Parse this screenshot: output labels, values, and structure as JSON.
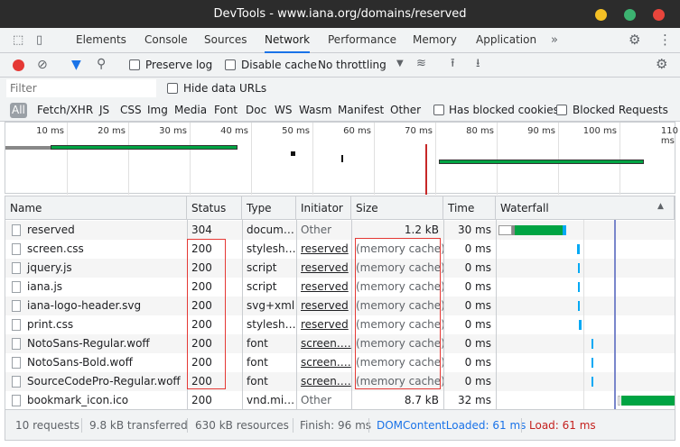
{
  "window": {
    "title": "DevTools - www.iana.org/domains/reserved"
  },
  "tabs": [
    {
      "label": "Elements"
    },
    {
      "label": "Console"
    },
    {
      "label": "Sources"
    },
    {
      "label": "Network",
      "active": true
    },
    {
      "label": "Performance"
    },
    {
      "label": "Memory"
    },
    {
      "label": "Application"
    }
  ],
  "toolbar": {
    "preserve_log": "Preserve log",
    "disable_cache": "Disable cache",
    "throttling": "No throttling"
  },
  "filter": {
    "placeholder": "Filter",
    "hide_data_urls": "Hide data URLs"
  },
  "type_filters": [
    "All",
    "Fetch/XHR",
    "JS",
    "CSS",
    "Img",
    "Media",
    "Font",
    "Doc",
    "WS",
    "Wasm",
    "Manifest",
    "Other"
  ],
  "blocked": {
    "cookies": "Has blocked cookies",
    "requests": "Blocked Requests"
  },
  "overview": {
    "ticks": [
      "10 ms",
      "20 ms",
      "30 ms",
      "40 ms",
      "50 ms",
      "60 ms",
      "70 ms",
      "80 ms",
      "90 ms",
      "100 ms",
      "110 ms"
    ]
  },
  "columns": [
    "Name",
    "Status",
    "Type",
    "Initiator",
    "Size",
    "Time",
    "Waterfall"
  ],
  "rows": [
    {
      "name": "reserved",
      "status": "304",
      "type": "docum…",
      "initiator": "Other",
      "size": "1.2 kB",
      "time": "30 ms"
    },
    {
      "name": "screen.css",
      "status": "200",
      "type": "stylesh…",
      "initiator": "reserved",
      "size": "(memory cache)",
      "time": "0 ms"
    },
    {
      "name": "jquery.js",
      "status": "200",
      "type": "script",
      "initiator": "reserved",
      "size": "(memory cache)",
      "time": "0 ms"
    },
    {
      "name": "iana.js",
      "status": "200",
      "type": "script",
      "initiator": "reserved",
      "size": "(memory cache)",
      "time": "0 ms"
    },
    {
      "name": "iana-logo-header.svg",
      "status": "200",
      "type": "svg+xml",
      "initiator": "reserved",
      "size": "(memory cache)",
      "time": "0 ms"
    },
    {
      "name": "print.css",
      "status": "200",
      "type": "stylesh…",
      "initiator": "reserved",
      "size": "(memory cache)",
      "time": "0 ms"
    },
    {
      "name": "NotoSans-Regular.woff",
      "status": "200",
      "type": "font",
      "initiator": "screen.…",
      "size": "(memory cache)",
      "time": "0 ms"
    },
    {
      "name": "NotoSans-Bold.woff",
      "status": "200",
      "type": "font",
      "initiator": "screen.…",
      "size": "(memory cache)",
      "time": "0 ms"
    },
    {
      "name": "SourceCodePro-Regular.woff",
      "status": "200",
      "type": "font",
      "initiator": "screen.…",
      "size": "(memory cache)",
      "time": "0 ms"
    },
    {
      "name": "bookmark_icon.ico",
      "status": "200",
      "type": "vnd.mi…",
      "initiator": "Other",
      "size": "8.7 kB",
      "time": "32 ms"
    }
  ],
  "footer": {
    "requests": "10 requests",
    "transferred": "9.8 kB transferred",
    "resources": "630 kB resources",
    "finish": "Finish: 96 ms",
    "dcl": "DOMContentLoaded: 61 ms",
    "load": "Load: 61 ms"
  },
  "colors": {
    "accent": "#1a73e8",
    "record": "#e53935",
    "dcl": "#1a73e8",
    "load": "#d93025",
    "waterfall_green": "#00a443",
    "waterfall_blue": "#03a9f4"
  }
}
